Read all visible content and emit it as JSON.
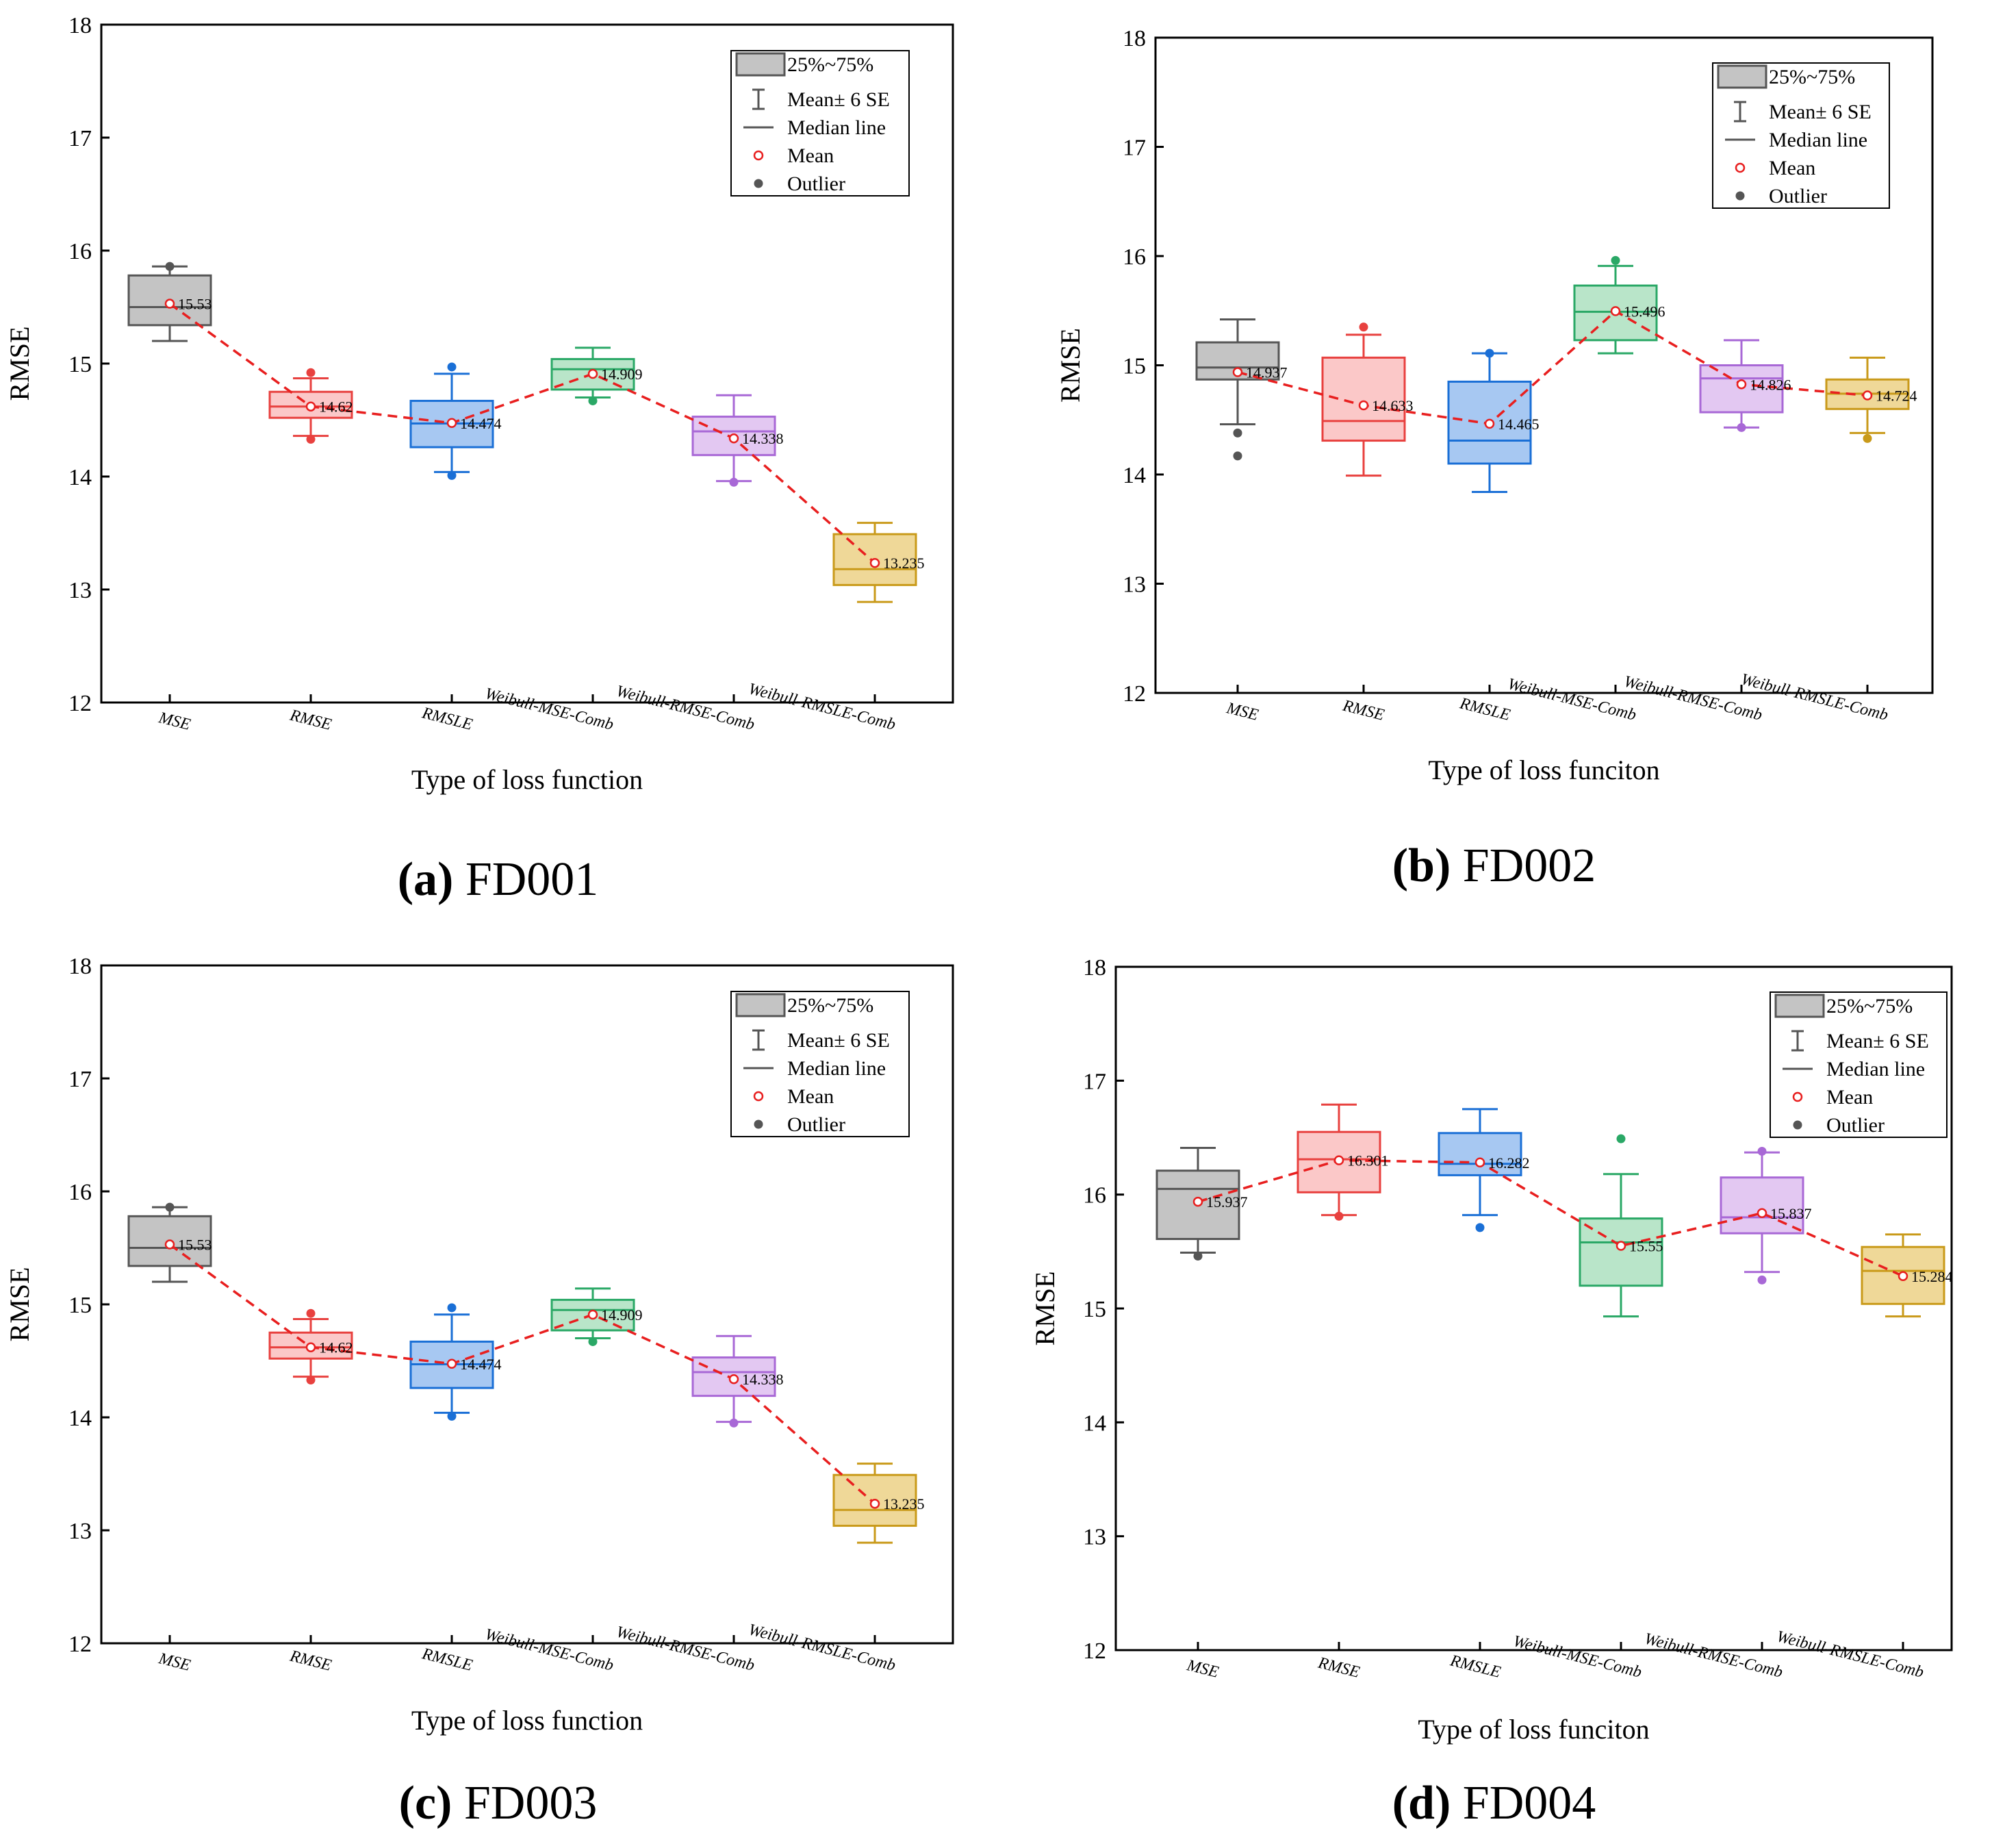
{
  "legend": {
    "box_label": "25%~75%",
    "whisker_label": "Mean± 6 SE",
    "median_label": "Median line",
    "mean_label": "Mean",
    "outlier_label": "Outlier"
  },
  "colors": {
    "series": [
      "#555555",
      "#e8413f",
      "#1a6fd6",
      "#2aa866",
      "#a868d6",
      "#c99a1a"
    ],
    "fills": [
      "#c4c4c4",
      "#fbc8c8",
      "#a7c8f2",
      "#b9e5c9",
      "#e3c8f2",
      "#efd898"
    ],
    "mean_line": "#e81f1f"
  },
  "chart_data": [
    {
      "type": "box",
      "panel_letter": "(a)",
      "panel_name": "FD001",
      "xlabel": "Type of loss function",
      "ylabel": "RMSE",
      "ylim": [
        12,
        18
      ],
      "yticks": [
        "12",
        "13",
        "14",
        "15",
        "16",
        "17",
        "18"
      ],
      "categories": [
        "MSE",
        "RMSE",
        "RMSLE",
        "Weibull-MSE-Comb",
        "Weibull-RMSE-Comb",
        "Weibull-RMSLE-Comb"
      ],
      "boxes": [
        {
          "whisker_low": 15.2,
          "q1": 15.34,
          "median": 15.5,
          "q3": 15.78,
          "whisker_high": 15.86,
          "outliers": [
            15.86
          ]
        },
        {
          "whisker_low": 14.36,
          "q1": 14.52,
          "median": 14.62,
          "q3": 14.75,
          "whisker_high": 14.87,
          "outliers": [
            14.33,
            14.92
          ]
        },
        {
          "whisker_low": 14.04,
          "q1": 14.26,
          "median": 14.47,
          "q3": 14.67,
          "whisker_high": 14.91,
          "outliers": [
            14.01,
            14.97
          ]
        },
        {
          "whisker_low": 14.7,
          "q1": 14.77,
          "median": 14.95,
          "q3": 15.04,
          "whisker_high": 15.14,
          "outliers": [
            14.67
          ]
        },
        {
          "whisker_low": 13.96,
          "q1": 14.19,
          "median": 14.4,
          "q3": 14.53,
          "whisker_high": 14.72,
          "outliers": [
            13.95
          ]
        },
        {
          "whisker_low": 12.89,
          "q1": 13.04,
          "median": 13.18,
          "q3": 13.49,
          "whisker_high": 13.59,
          "outliers": []
        }
      ],
      "means": [
        15.53,
        14.62,
        14.474,
        14.909,
        14.338,
        13.235
      ],
      "mean_labels": [
        "15.53",
        "14.62",
        "14.474",
        "14.909",
        "14.338",
        "13.235"
      ]
    },
    {
      "type": "box",
      "panel_letter": "(b)",
      "panel_name": "FD002",
      "xlabel": "Type of loss funciton",
      "ylabel": "RMSE",
      "ylim": [
        12,
        18
      ],
      "yticks": [
        "12",
        "13",
        "14",
        "15",
        "16",
        "17",
        "18"
      ],
      "categories": [
        "MSE",
        "RMSE",
        "RMSLE",
        "Weibull-MSE-Comb",
        "Weibull-RMSE-Comb",
        "Weibull-RMSLE-Comb"
      ],
      "boxes": [
        {
          "whisker_low": 14.46,
          "q1": 14.87,
          "median": 14.98,
          "q3": 15.21,
          "whisker_high": 15.42,
          "outliers": [
            14.38,
            14.17
          ]
        },
        {
          "whisker_low": 13.99,
          "q1": 14.31,
          "median": 14.49,
          "q3": 15.07,
          "whisker_high": 15.28,
          "outliers": [
            15.35
          ]
        },
        {
          "whisker_low": 13.84,
          "q1": 14.1,
          "median": 14.31,
          "q3": 14.85,
          "whisker_high": 15.11,
          "outliers": [
            15.11
          ]
        },
        {
          "whisker_low": 15.11,
          "q1": 15.23,
          "median": 15.49,
          "q3": 15.73,
          "whisker_high": 15.91,
          "outliers": [
            15.96
          ]
        },
        {
          "whisker_low": 14.43,
          "q1": 14.57,
          "median": 14.88,
          "q3": 15.0,
          "whisker_high": 15.23,
          "outliers": [
            14.43
          ]
        },
        {
          "whisker_low": 14.38,
          "q1": 14.6,
          "median": 14.74,
          "q3": 14.87,
          "whisker_high": 15.07,
          "outliers": [
            14.33
          ]
        }
      ],
      "means": [
        14.937,
        14.633,
        14.465,
        15.496,
        14.826,
        14.724
      ],
      "mean_labels": [
        "14.937",
        "14.633",
        "14.465",
        "15.496",
        "14.826",
        "14.724"
      ]
    },
    {
      "type": "box",
      "panel_letter": "(c)",
      "panel_name": "FD003",
      "xlabel": "Type of loss function",
      "ylabel": "RMSE",
      "ylim": [
        12,
        18
      ],
      "yticks": [
        "12",
        "13",
        "14",
        "15",
        "16",
        "17",
        "18"
      ],
      "categories": [
        "MSE",
        "RMSE",
        "RMSLE",
        "Weibull-MSE-Comb",
        "Weibull-RMSE-Comb",
        "Weibull-RMSLE-Comb"
      ],
      "boxes": [
        {
          "whisker_low": 15.2,
          "q1": 15.34,
          "median": 15.5,
          "q3": 15.78,
          "whisker_high": 15.86,
          "outliers": [
            15.86
          ]
        },
        {
          "whisker_low": 14.36,
          "q1": 14.52,
          "median": 14.62,
          "q3": 14.75,
          "whisker_high": 14.87,
          "outliers": [
            14.33,
            14.92
          ]
        },
        {
          "whisker_low": 14.04,
          "q1": 14.26,
          "median": 14.47,
          "q3": 14.67,
          "whisker_high": 14.91,
          "outliers": [
            14.01,
            14.97
          ]
        },
        {
          "whisker_low": 14.7,
          "q1": 14.77,
          "median": 14.95,
          "q3": 15.04,
          "whisker_high": 15.14,
          "outliers": [
            14.67
          ]
        },
        {
          "whisker_low": 13.96,
          "q1": 14.19,
          "median": 14.4,
          "q3": 14.53,
          "whisker_high": 14.72,
          "outliers": [
            13.95
          ]
        },
        {
          "whisker_low": 12.89,
          "q1": 13.04,
          "median": 13.18,
          "q3": 13.49,
          "whisker_high": 13.59,
          "outliers": []
        }
      ],
      "means": [
        15.53,
        14.62,
        14.474,
        14.909,
        14.338,
        13.235
      ],
      "mean_labels": [
        "15.53",
        "14.62",
        "14.474",
        "14.909",
        "14.338",
        "13.235"
      ]
    },
    {
      "type": "box",
      "panel_letter": "(d)",
      "panel_name": "FD004",
      "xlabel": "Type of loss funciton",
      "ylabel": "RMSE",
      "ylim": [
        12,
        18
      ],
      "yticks": [
        "12",
        "13",
        "14",
        "15",
        "16",
        "17",
        "18"
      ],
      "categories": [
        "MSE",
        "RMSE",
        "RMSLE",
        "Weibull-MSE-Comb",
        "Weibull-RMSE-Comb",
        "Weibull-RMSLE-Comb"
      ],
      "boxes": [
        {
          "whisker_low": 15.49,
          "q1": 15.61,
          "median": 16.05,
          "q3": 16.21,
          "whisker_high": 16.41,
          "outliers": [
            15.46
          ]
        },
        {
          "whisker_low": 15.82,
          "q1": 16.02,
          "median": 16.31,
          "q3": 16.55,
          "whisker_high": 16.79,
          "outliers": [
            15.81
          ]
        },
        {
          "whisker_low": 15.82,
          "q1": 16.17,
          "median": 16.27,
          "q3": 16.54,
          "whisker_high": 16.75,
          "outliers": [
            15.71
          ]
        },
        {
          "whisker_low": 14.93,
          "q1": 15.2,
          "median": 15.58,
          "q3": 15.79,
          "whisker_high": 16.18,
          "outliers": [
            16.49
          ]
        },
        {
          "whisker_low": 15.32,
          "q1": 15.66,
          "median": 15.8,
          "q3": 16.15,
          "whisker_high": 16.37,
          "outliers": [
            15.25,
            16.38
          ]
        },
        {
          "whisker_low": 14.93,
          "q1": 15.04,
          "median": 15.33,
          "q3": 15.54,
          "whisker_high": 15.65,
          "outliers": []
        }
      ],
      "means": [
        15.937,
        16.301,
        16.282,
        15.55,
        15.837,
        15.284
      ],
      "mean_labels": [
        "15.937",
        "16.301",
        "16.282",
        "15.55",
        "15.837",
        "15.284"
      ]
    }
  ]
}
